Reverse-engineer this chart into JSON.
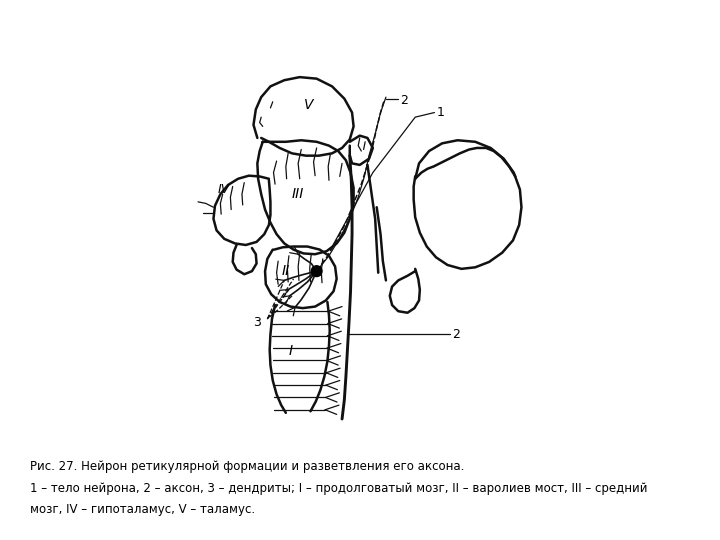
{
  "caption_line1": "Рис. 27. Нейрон ретикулярной формации и разветвления его аксона.",
  "caption_line2": "1 – тело нейрона, 2 – аксон, 3 – дендриты; I – продолговатый мозг, II – варолиев мост, III – средний",
  "caption_line3": "мозг, IV – гипоталамус, V – таламус.",
  "bg_color": "#ffffff",
  "line_color": "#111111",
  "caption_fontsize": 8.5,
  "label_fontsize": 9
}
